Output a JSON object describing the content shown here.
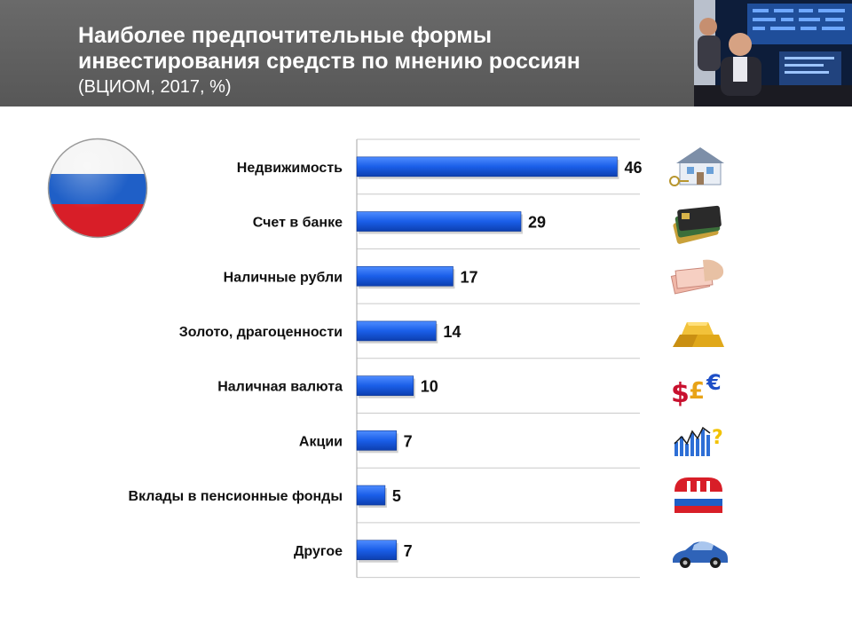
{
  "header": {
    "title_line1": "Наиболее предпочтительные формы",
    "title_line2": "инвестирования средств по мнению россиян",
    "subtitle": "(ВЦИОМ, 2017, %)"
  },
  "icons": [
    "house-keys-icon",
    "bank-cards-icon",
    "ruble-banknotes-icon",
    "gold-bars-icon",
    "currency-symbols-icon",
    "stocks-chart-icon",
    "pension-fund-logo-icon",
    "car-icon"
  ],
  "chart_data": {
    "type": "bar",
    "orientation": "horizontal",
    "categories": [
      "Недвижимость",
      "Счет в банке",
      "Наличные рубли",
      "Золото, драгоценности",
      "Наличная валюта",
      "Акции",
      "Вклады в пенсионные фонды",
      "Другое"
    ],
    "values": [
      46,
      29,
      17,
      14,
      10,
      7,
      5,
      7
    ],
    "xlim": [
      0,
      50
    ],
    "grid": "horizontal separators",
    "bar_color": "#1a5ee8",
    "title": "Наиболее предпочтительные формы инвестирования средств по мнению россиян",
    "subtitle": "(ВЦИОМ, 2017, %)"
  }
}
